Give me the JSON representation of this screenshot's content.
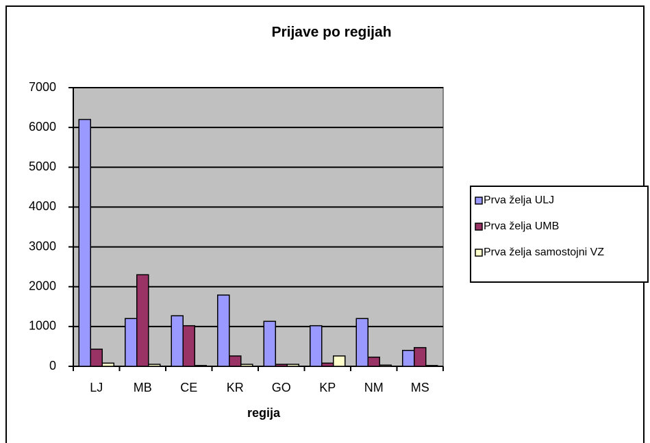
{
  "chart_data": {
    "type": "bar",
    "title": "Prijave po regijah",
    "x_label": "regija",
    "categories": [
      "LJ",
      "MB",
      "CE",
      "KR",
      "GO",
      "KP",
      "NM",
      "MS"
    ],
    "series": [
      {
        "name": "Prva želja ULJ",
        "color": "#9999ff",
        "values": [
          6200,
          1200,
          1270,
          1790,
          1130,
          1020,
          1200,
          400
        ]
      },
      {
        "name": "Prva želja UMB",
        "color": "#993366",
        "values": [
          430,
          2300,
          1020,
          260,
          50,
          80,
          230,
          470
        ]
      },
      {
        "name": "Prva želja samostojni VZ",
        "color": "#ffffcc",
        "values": [
          80,
          50,
          20,
          50,
          50,
          260,
          30,
          20
        ]
      }
    ],
    "ylim": [
      0,
      7000
    ],
    "yticks": [
      0,
      1000,
      2000,
      3000,
      4000,
      5000,
      6000,
      7000
    ],
    "grid": true,
    "legend": "right"
  }
}
